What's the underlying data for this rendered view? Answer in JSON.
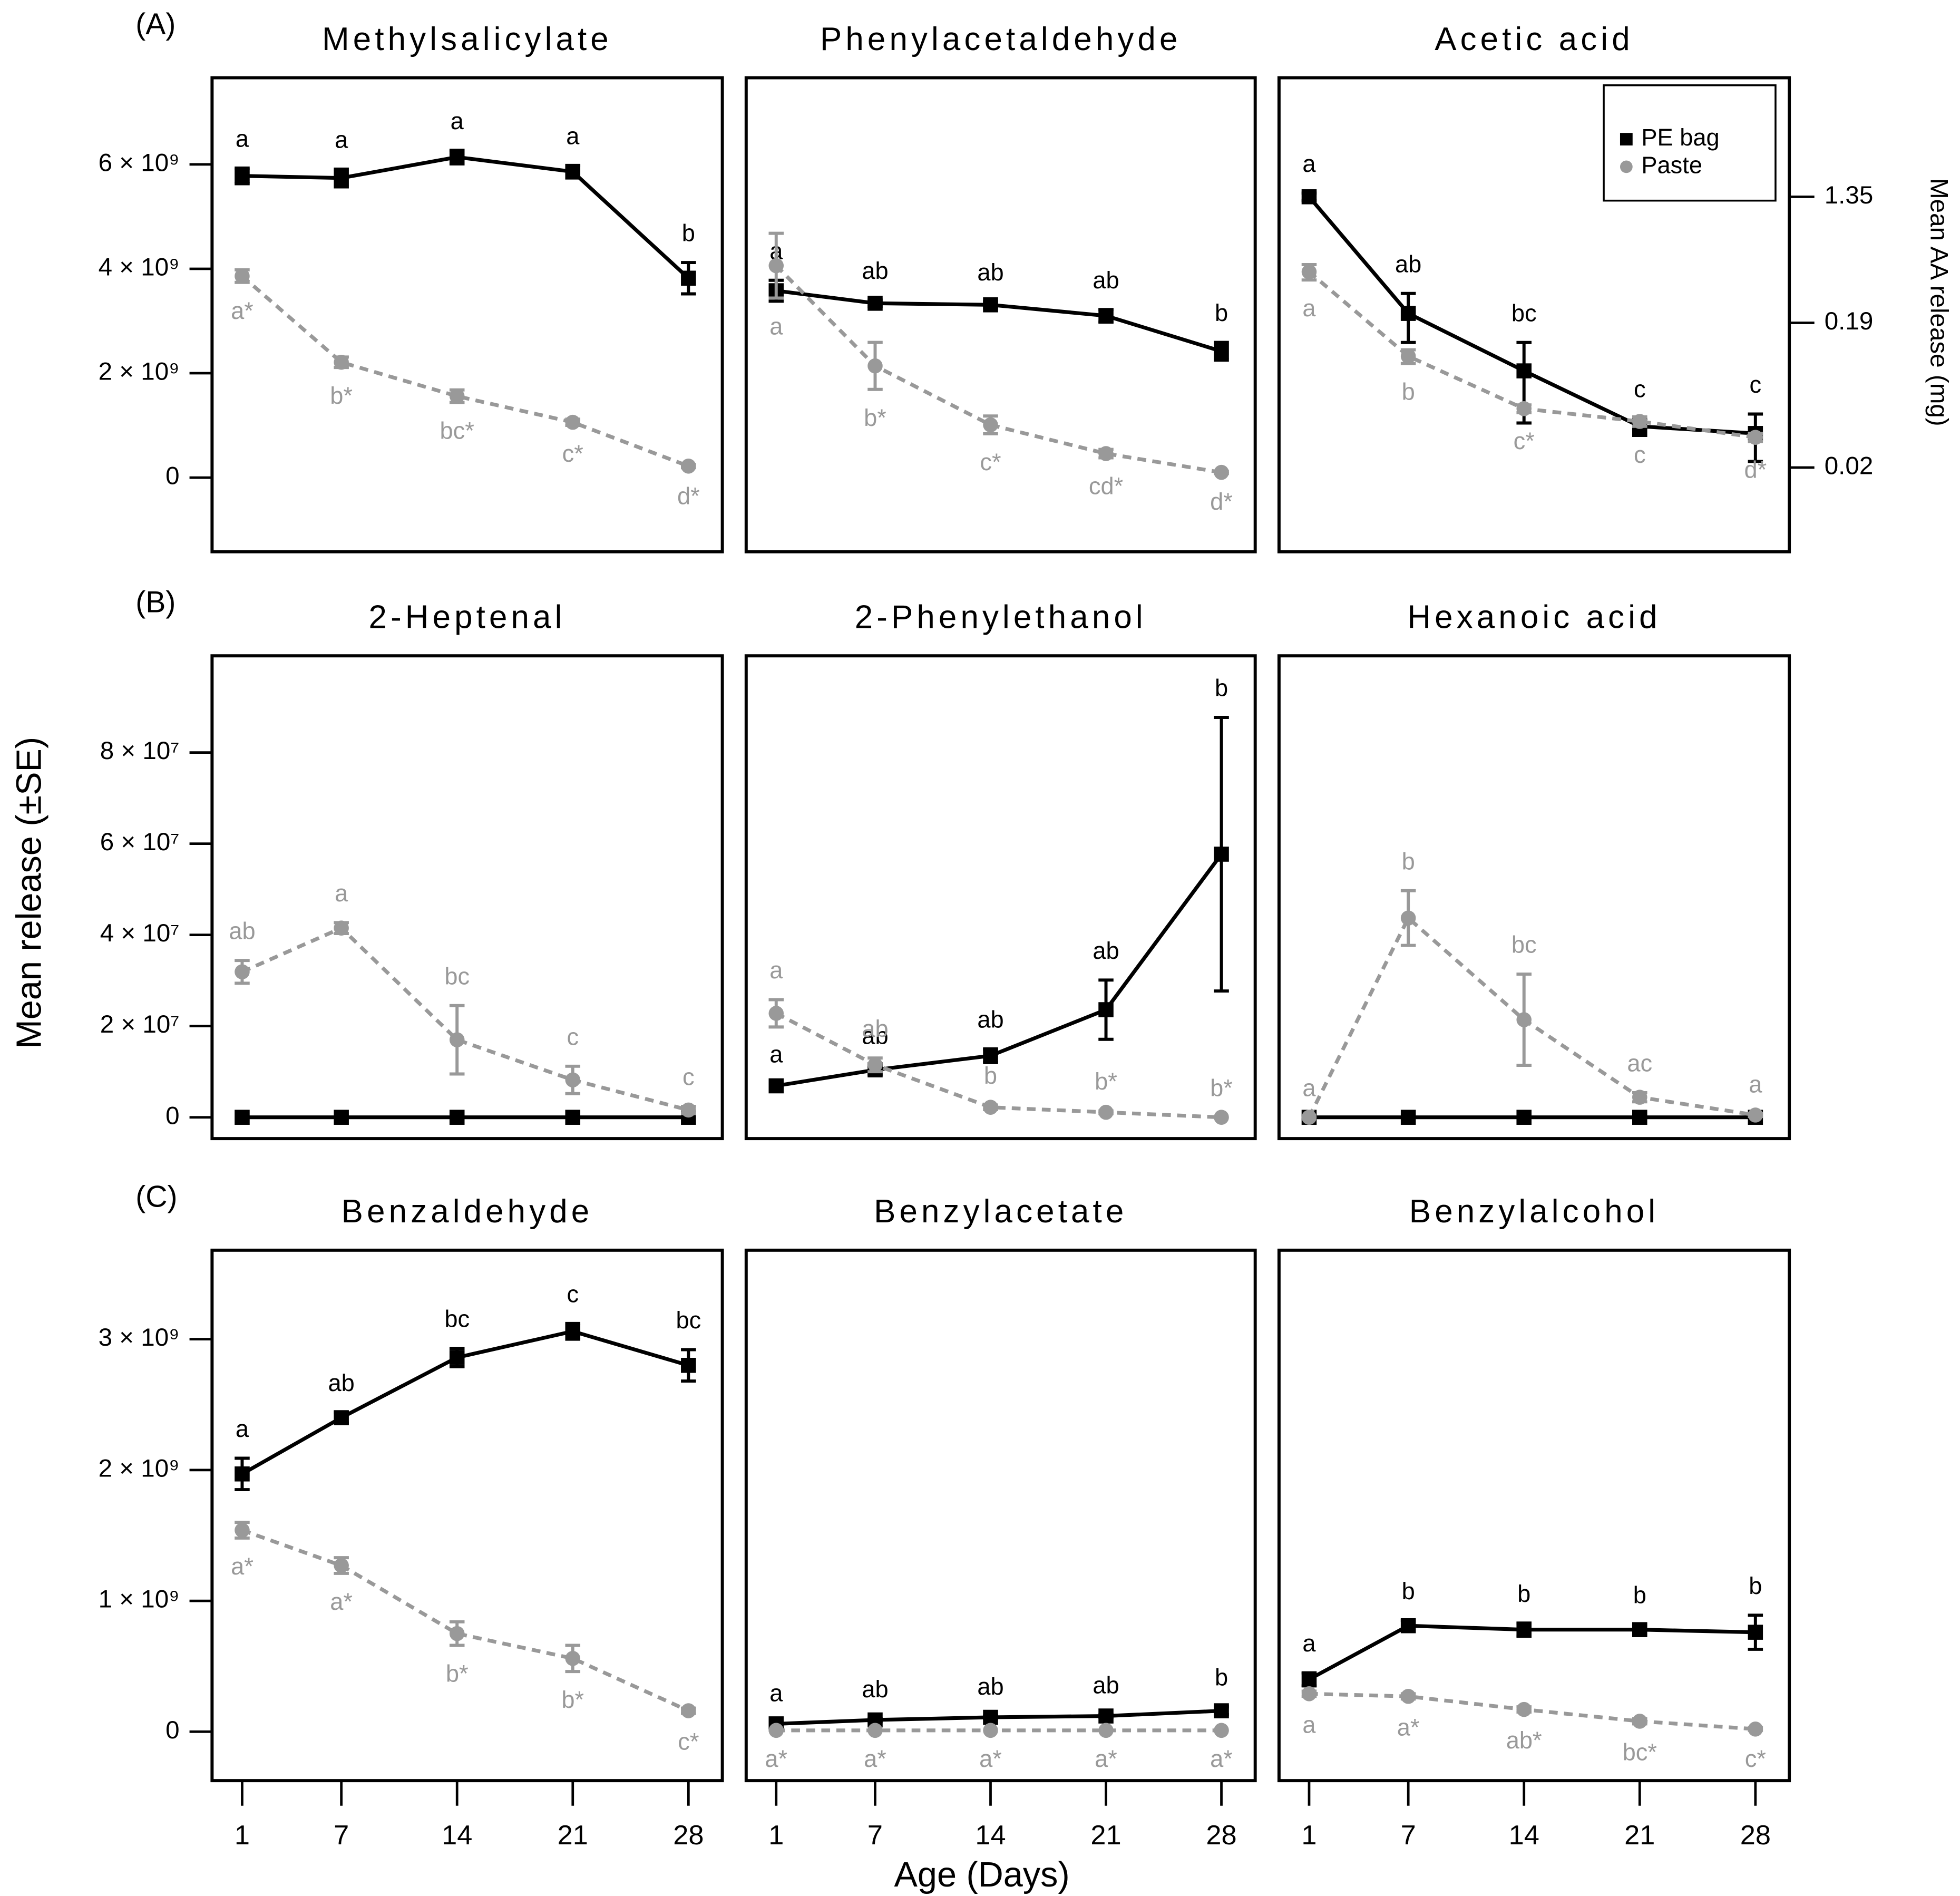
{
  "ylabel": "Mean release (±SE)",
  "xlabel": "Age (Days)",
  "chart_data": [
    {
      "type": "line",
      "panel_label": "(A)",
      "title": "Methylsalicylate",
      "x": [
        1,
        7,
        14,
        21,
        28
      ],
      "xlim": [
        -0.82,
        30.05
      ],
      "ylim": [
        -1420000000.0,
        7660000000.0
      ],
      "yticks": [
        0,
        {
          "value": 2000000000.0,
          "label": "2 × 10⁹"
        },
        {
          "value": 4000000000.0,
          "label": "4 × 10⁹"
        },
        {
          "value": 6000000000.0,
          "label": "6 × 10⁹"
        }
      ],
      "series": [
        {
          "color": "#000000",
          "marker": "square",
          "linestyle": "solid",
          "values": [
            5780000000.0,
            5740000000.0,
            6140000000.0,
            5860000000.0,
            3820000000.0
          ],
          "errors": [
            150000000.0,
            170000000.0,
            130000000.0,
            120000000.0,
            300000000.0
          ],
          "letters": [
            "a",
            "a",
            "a",
            "a",
            "b"
          ],
          "letters_position": "above"
        },
        {
          "color": "#999999",
          "marker": "circle",
          "linestyle": "dashed",
          "values": [
            3860000000.0,
            2210000000.0,
            1560000000.0,
            1060000000.0,
            220000000.0
          ],
          "errors": [
            120000000.0,
            100000000.0,
            120000000.0,
            60000000.0,
            30000000.0
          ],
          "letters": [
            "a*",
            "b*",
            "bc*",
            "c*",
            "d*"
          ],
          "letters_position": "below"
        }
      ]
    },
    {
      "type": "line",
      "title": "Phenylacetaldehyde",
      "x": [
        1,
        7,
        14,
        21,
        28
      ],
      "xlim": [
        -0.82,
        30.05
      ],
      "ylim": [
        -1420000000.0,
        7660000000.0
      ],
      "series": [
        {
          "color": "#000000",
          "marker": "square",
          "linestyle": "solid",
          "values": [
            3580000000.0,
            3340000000.0,
            3310000000.0,
            3100000000.0,
            2420000000.0
          ],
          "errors": [
            200000000.0,
            60000000.0,
            60000000.0,
            120000000.0,
            170000000.0
          ],
          "letters": [
            "a",
            "ab",
            "ab",
            "ab",
            "b"
          ],
          "letters_position": "above"
        },
        {
          "color": "#999999",
          "marker": "circle",
          "linestyle": "dashed",
          "values": [
            4060000000.0,
            2140000000.0,
            1010000000.0,
            460000000.0,
            100000000.0
          ],
          "errors": [
            620000000.0,
            450000000.0,
            170000000.0,
            80000000.0,
            20000000.0
          ],
          "letters": [
            "a",
            "b*",
            "c*",
            "cd*",
            "d*"
          ],
          "letters_position": "below"
        }
      ]
    },
    {
      "type": "line",
      "title": "Acetic acid",
      "x": [
        1,
        7,
        14,
        21,
        28
      ],
      "xlim": [
        -0.82,
        30.05
      ],
      "y2lim": [
        0.0054,
        8.6
      ],
      "y2scale": "log",
      "y2ticks": [
        0.02,
        0.19,
        1.35
      ],
      "y2label": "Mean AA release (mg)",
      "legend": "upper right",
      "series": [
        {
          "name": "PE bag",
          "axis": "y2",
          "color": "#000000",
          "marker": "square",
          "linestyle": "solid",
          "values": [
            1.35,
            0.22,
            0.09,
            0.038,
            0.034
          ],
          "errors": [
            0.08,
            0.08,
            0.05,
            0.005,
            0.012
          ],
          "letters": [
            "a",
            "ab",
            "bc",
            "c",
            "c"
          ],
          "letters_position": "above"
        },
        {
          "name": "Paste",
          "axis": "y2",
          "color": "#999999",
          "marker": "circle",
          "linestyle": "dashed",
          "values": [
            0.42,
            0.113,
            0.05,
            0.041,
            0.032
          ],
          "errors": [
            0.05,
            0.012,
            0.003,
            0.003,
            0.002
          ],
          "letters": [
            "a",
            "b",
            "c*",
            "c",
            "d*"
          ],
          "letters_position": "below"
        }
      ]
    },
    {
      "type": "line",
      "panel_label": "(B)",
      "title": "2-Heptenal",
      "x": [
        1,
        7,
        14,
        21,
        28
      ],
      "xlim": [
        -0.82,
        30.05
      ],
      "ylim": [
        -4670000.0,
        101200000.0
      ],
      "yticks": [
        0,
        {
          "value": 20000000.0,
          "label": "2 × 10⁷"
        },
        {
          "value": 40000000.0,
          "label": "4 × 10⁷"
        },
        {
          "value": 60000000.0,
          "label": "6 × 10⁷"
        },
        {
          "value": 80000000.0,
          "label": "8 × 10⁷"
        }
      ],
      "series": [
        {
          "color": "#000000",
          "marker": "square",
          "linestyle": "solid",
          "values": [
            0,
            0,
            0,
            0,
            0
          ],
          "errors": [
            0,
            0,
            0,
            0,
            0
          ]
        },
        {
          "color": "#999999",
          "marker": "circle",
          "linestyle": "dashed",
          "values": [
            31900000.0,
            41500000.0,
            17000000.0,
            8200000.0,
            1600000.0
          ],
          "errors": [
            2500000.0,
            1200000.0,
            7500000.0,
            3000000.0,
            800000.0
          ],
          "letters": [
            "ab",
            "a",
            "bc",
            "c",
            "c"
          ],
          "letters_position": "above"
        }
      ]
    },
    {
      "type": "line",
      "title": "2-Phenylethanol",
      "x": [
        1,
        7,
        14,
        21,
        28
      ],
      "xlim": [
        -0.82,
        30.05
      ],
      "ylim": [
        -4670000.0,
        101200000.0
      ],
      "series": [
        {
          "color": "#000000",
          "marker": "square",
          "linestyle": "solid",
          "values": [
            6900000.0,
            10400000.0,
            13500000.0,
            23600000.0,
            57700000.0
          ],
          "errors": [
            500000.0,
            1000000.0,
            1500000.0,
            6500000.0,
            30000000.0
          ],
          "letters": [
            "a",
            "ab",
            "ab",
            "ab",
            "b"
          ],
          "letters_position": "above"
        },
        {
          "color": "#999999",
          "marker": "circle",
          "linestyle": "dashed",
          "values": [
            22800000.0,
            11500000.0,
            2200000.0,
            1100000.0,
            0
          ],
          "errors": [
            3000000.0,
            1500000.0,
            500000.0,
            300000.0,
            0
          ],
          "letters": [
            "a",
            "ab",
            "b",
            "b*",
            "b*"
          ],
          "letters_position": "above"
        }
      ]
    },
    {
      "type": "line",
      "title": "Hexanoic acid",
      "x": [
        1,
        7,
        14,
        21,
        28
      ],
      "xlim": [
        -0.82,
        30.05
      ],
      "ylim": [
        -4670000.0,
        101200000.0
      ],
      "series": [
        {
          "color": "#000000",
          "marker": "square",
          "linestyle": "solid",
          "values": [
            0,
            0,
            0,
            0,
            0
          ],
          "errors": [
            0,
            0,
            0,
            0,
            0
          ]
        },
        {
          "color": "#999999",
          "marker": "circle",
          "linestyle": "dashed",
          "values": [
            0,
            43700000.0,
            21400000.0,
            4400000.0,
            500000.0
          ],
          "errors": [
            0,
            6000000.0,
            10000000.0,
            1000000.0,
            300000.0
          ],
          "letters": [
            "a",
            "b",
            "bc",
            "ac",
            "a"
          ],
          "letters_position": "above"
        }
      ]
    },
    {
      "type": "line",
      "panel_label": "(C)",
      "title": "Benzaldehyde",
      "x": [
        1,
        7,
        14,
        21,
        28
      ],
      "xlim": [
        -0.82,
        30.05
      ],
      "xticks": [
        1,
        7,
        14,
        21,
        28
      ],
      "ylim": [
        -374000000.0,
        3680000000.0
      ],
      "yticks": [
        0,
        {
          "value": 1000000000.0,
          "label": "1 × 10⁹"
        },
        {
          "value": 2000000000.0,
          "label": "2 × 10⁹"
        },
        {
          "value": 3000000000.0,
          "label": "3 × 10⁹"
        }
      ],
      "series": [
        {
          "color": "#000000",
          "marker": "square",
          "linestyle": "solid",
          "values": [
            1970000000.0,
            2400000000.0,
            2860000000.0,
            3060000000.0,
            2800000000.0
          ],
          "errors": [
            120000000.0,
            40000000.0,
            70000000.0,
            60000000.0,
            120000000.0
          ],
          "letters": [
            "a",
            "ab",
            "bc",
            "c",
            "bc"
          ],
          "letters_position": "above"
        },
        {
          "color": "#999999",
          "marker": "circle",
          "linestyle": "dashed",
          "values": [
            1540000000.0,
            1270000000.0,
            750000000.0,
            560000000.0,
            160000000.0
          ],
          "errors": [
            60000000.0,
            60000000.0,
            90000000.0,
            100000000.0,
            20000000.0
          ],
          "letters": [
            "a*",
            "a*",
            "b*",
            "b*",
            "c*"
          ],
          "letters_position": "below"
        }
      ]
    },
    {
      "type": "line",
      "title": "Benzylacetate",
      "x": [
        1,
        7,
        14,
        21,
        28
      ],
      "xlim": [
        -0.82,
        30.05
      ],
      "xticks": [
        1,
        7,
        14,
        21,
        28
      ],
      "ylim": [
        -374000000.0,
        3680000000.0
      ],
      "series": [
        {
          "color": "#000000",
          "marker": "square",
          "linestyle": "solid",
          "values": [
            60000000.0,
            90000000.0,
            110000000.0,
            120000000.0,
            160000000.0
          ],
          "errors": [
            10000000.0,
            10000000.0,
            10000000.0,
            10000000.0,
            30000000.0
          ],
          "letters": [
            "a",
            "ab",
            "ab",
            "ab",
            "b"
          ],
          "letters_position": "above"
        },
        {
          "color": "#999999",
          "marker": "circle",
          "linestyle": "dashed",
          "values": [
            10000000.0,
            10000000.0,
            10000000.0,
            10000000.0,
            10000000.0
          ],
          "errors": [
            0,
            0,
            0,
            0,
            0
          ],
          "letters": [
            "a*",
            "a*",
            "a*",
            "a*",
            "a*"
          ],
          "letters_position": "below"
        }
      ]
    },
    {
      "type": "line",
      "title": "Benzylalcohol",
      "x": [
        1,
        7,
        14,
        21,
        28
      ],
      "xlim": [
        -0.82,
        30.05
      ],
      "xticks": [
        1,
        7,
        14,
        21,
        28
      ],
      "ylim": [
        -374000000.0,
        3680000000.0
      ],
      "series": [
        {
          "color": "#000000",
          "marker": "square",
          "linestyle": "solid",
          "values": [
            400000000.0,
            810000000.0,
            780000000.0,
            780000000.0,
            760000000.0
          ],
          "errors": [
            50000000.0,
            40000000.0,
            50000000.0,
            40000000.0,
            130000000.0
          ],
          "letters": [
            "a",
            "b",
            "b",
            "b",
            "b"
          ],
          "letters_position": "above"
        },
        {
          "color": "#999999",
          "marker": "circle",
          "linestyle": "dashed",
          "values": [
            290000000.0,
            270000000.0,
            170000000.0,
            80000000.0,
            20000000.0
          ],
          "errors": [
            20000000.0,
            20000000.0,
            20000000.0,
            20000000.0,
            10000000.0
          ],
          "letters": [
            "a",
            "a*",
            "ab*",
            "bc*",
            "c*"
          ],
          "letters_position": "below"
        }
      ]
    }
  ]
}
